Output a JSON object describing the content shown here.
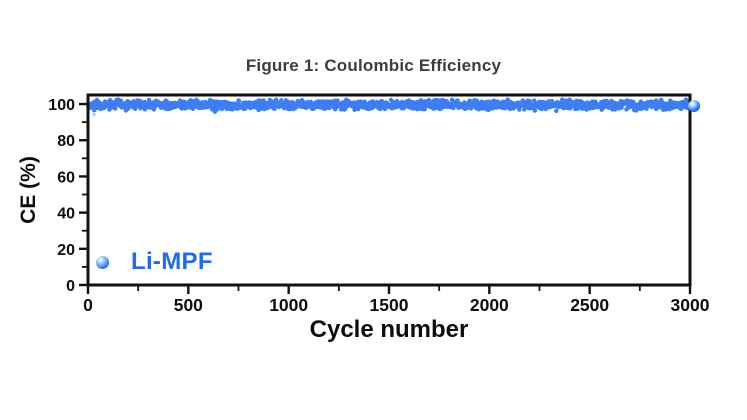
{
  "window": {
    "background": "#ffffff"
  },
  "figure": {
    "title": "Figure 1: Coulombic Efficiency"
  },
  "colors": {
    "series_blue": "#3d7ef4",
    "legend_text_blue": "#1c6cf2",
    "title_gray": "#3d3d3d",
    "axis_black": "#0d0d0d",
    "outlier_light_blue": "#9ed4f6"
  },
  "chart_data": {
    "type": "scatter",
    "title": "Figure 1: Coulombic Efficiency",
    "xlabel": "Cycle number",
    "ylabel": "CE (%)",
    "xlim": [
      0,
      3000
    ],
    "ylim": [
      0,
      105
    ],
    "x_major_ticks": [
      0,
      500,
      1000,
      1500,
      2000,
      2500,
      3000
    ],
    "x_minor_ticks": [
      250,
      750,
      1250,
      1750,
      2250,
      2750
    ],
    "y_major_ticks": [
      0,
      20,
      40,
      60,
      80,
      100
    ],
    "y_minor_ticks": [
      10,
      30,
      50,
      70,
      90
    ],
    "grid": false,
    "legend": {
      "position": "inside-bottom-left",
      "entries": [
        {
          "label": "Li-MPF",
          "marker": "sphere",
          "color": "#2e7cf6"
        }
      ]
    },
    "series": [
      {
        "name": "Li-MPF",
        "color": "#3d7ef4",
        "marker": "circle",
        "band": {
          "x_start": 1,
          "x_end": 3000,
          "points": 1500,
          "y_mean": 99.6,
          "y_spread": 3.0,
          "summary": "Coulombic efficiency holds steady near 100% (about 97-102%) across all 3000 cycles, forming a dense horizontal blue band clipped at the top frame"
        },
        "outliers": [
          {
            "x": 30,
            "y": 94.2
          }
        ]
      }
    ]
  }
}
